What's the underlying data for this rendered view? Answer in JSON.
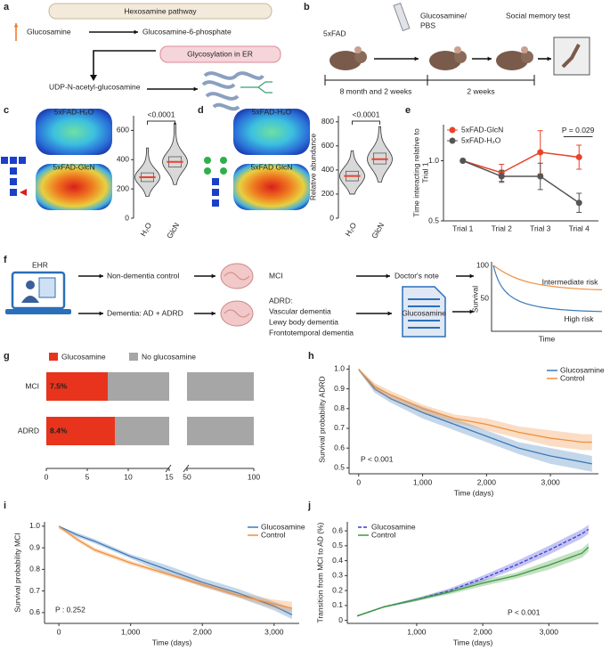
{
  "panel_letters": [
    "a",
    "b",
    "c",
    "d",
    "e",
    "f",
    "g",
    "h",
    "i",
    "j"
  ],
  "diagram_a": {
    "box_title": "Hexosamine pathway",
    "source": "Glucosamine",
    "product": "Glucosamine-6-phosphate",
    "process": "Glycosylation in ER",
    "intermediate": "UDP-N-acetyl-glucosamine"
  },
  "diagram_b": {
    "model": "5xFAD",
    "treatment": [
      "Glucosamine/",
      "PBS"
    ],
    "test": "Social memory test",
    "periods": [
      "8 month and 2 weeks",
      "2 weeks"
    ]
  },
  "diagram_f": {
    "source": "EHR",
    "groups": [
      "Non-dementia control",
      "Dementia: AD + ADRD"
    ],
    "mci": "MCI",
    "adrd": [
      "ADRD:",
      "Vascular dementia",
      "Lewy body dementia",
      "Frontotemporal dementia"
    ],
    "note": "Doctor's note",
    "note_term": "Glucosamine",
    "mini_chart": {
      "y_label": "Survival",
      "x_label": "Time",
      "yticks": [
        100,
        50
      ],
      "curves": [
        "Intermediate risk",
        "High risk"
      ]
    }
  },
  "chart_data": [
    {
      "type": "violin",
      "image_labels": [
        "5xFAD-H₂O",
        "5xFAD-GlcN"
      ],
      "categories": [
        "H₂O",
        "GlcN"
      ],
      "min": [
        150,
        230
      ],
      "q1": [
        250,
        350
      ],
      "median": [
        280,
        385
      ],
      "q3": [
        310,
        420
      ],
      "max": [
        480,
        650
      ],
      "color": "#d9d9d9",
      "median_color": "#e8442a",
      "ylim": [
        0,
        700
      ],
      "yticks": [
        0,
        200,
        400,
        600
      ],
      "annotation": "<0.0001"
    },
    {
      "type": "violin",
      "image_labels": [
        "5xFAD-H₂O",
        "5xFAD GlcN"
      ],
      "categories": [
        "H₂O",
        "GlcN"
      ],
      "min": [
        200,
        300
      ],
      "q1": [
        310,
        450
      ],
      "median": [
        350,
        490
      ],
      "q3": [
        390,
        540
      ],
      "max": [
        560,
        760
      ],
      "color": "#d9d9d9",
      "median_color": "#e8442a",
      "ylim": [
        0,
        850
      ],
      "yticks": [
        0,
        200,
        400,
        600,
        800
      ],
      "y_label": "Relative abundance",
      "annotation": "<0.0001"
    },
    {
      "type": "line",
      "categories": [
        "Trial 1",
        "Trial 2",
        "Trial 3",
        "Trial 4"
      ],
      "series": [
        {
          "name": "5xFAD-GlcN",
          "color": "#e8442a",
          "values": [
            1,
            0.9,
            1.07,
            1.03
          ],
          "errors": [
            0,
            0.07,
            0.18,
            0.1
          ]
        },
        {
          "name": "5xFAD-H₂O",
          "color": "#555555",
          "values": [
            1,
            0.87,
            0.87,
            0.65
          ],
          "errors": [
            0,
            0.05,
            0.11,
            0.08
          ]
        }
      ],
      "ylim": [
        0.5,
        1.3
      ],
      "yticks": [
        0.5,
        {
          "value": 1,
          "label": "1.0"
        }
      ],
      "y_label": [
        "Time interacting relative to",
        "Trial 1"
      ],
      "annotation": "P = 0.029",
      "legend": "upper left"
    },
    {
      "type": "bar",
      "orientation": "horizontal",
      "stacked": true,
      "categories": [
        "MCI",
        "ADRD"
      ],
      "series": [
        {
          "name": "Glucosamine",
          "color": "#e8341c",
          "values": [
            7.5,
            8.4
          ],
          "value_labels": [
            "7.5%",
            "8.4%"
          ]
        },
        {
          "name": "No glucosamine",
          "color": "#a6a6a6",
          "values": [
            92.5,
            91.6
          ]
        }
      ],
      "xlim": [
        0,
        100
      ],
      "xbreak": [
        15,
        50
      ],
      "xticks": [
        0,
        5,
        10,
        15,
        50,
        100
      ],
      "legend": "top"
    },
    {
      "type": "survival",
      "x": [
        0,
        250,
        500,
        1000,
        1500,
        2000,
        2500,
        3000,
        3500,
        3650
      ],
      "series": [
        {
          "name": "Glucosamine",
          "color": "#3d7ab8",
          "values": [
            1,
            0.9,
            0.85,
            0.78,
            0.72,
            0.66,
            0.6,
            0.56,
            0.53,
            0.52
          ],
          "lower": [
            0.99,
            0.88,
            0.83,
            0.75,
            0.69,
            0.63,
            0.57,
            0.52,
            0.49,
            0.48
          ],
          "upper": [
            1,
            0.92,
            0.87,
            0.81,
            0.75,
            0.69,
            0.63,
            0.6,
            0.57,
            0.56
          ]
        },
        {
          "name": "Control",
          "color": "#f0903c",
          "values": [
            1,
            0.91,
            0.87,
            0.8,
            0.75,
            0.72,
            0.68,
            0.65,
            0.63,
            0.63
          ],
          "lower": [
            0.99,
            0.89,
            0.85,
            0.78,
            0.73,
            0.69,
            0.65,
            0.61,
            0.59,
            0.59
          ],
          "upper": [
            1,
            0.93,
            0.89,
            0.82,
            0.77,
            0.75,
            0.71,
            0.69,
            0.67,
            0.67
          ]
        }
      ],
      "xlim": [
        -150,
        3750
      ],
      "xticks": [
        0,
        {
          "value": 1000,
          "label": "1,000"
        },
        {
          "value": 2000,
          "label": "2,000"
        },
        {
          "value": 3000,
          "label": "3,000"
        }
      ],
      "ylim": [
        0.47,
        1.02
      ],
      "yticks": [
        0.5,
        0.6,
        0.7,
        0.8,
        0.9,
        {
          "value": 1,
          "label": "1.0"
        }
      ],
      "x_label": "Time (days)",
      "y_label": "Survival probability ADRD",
      "annotation": "P < 0.001",
      "legend": "upper right"
    },
    {
      "type": "survival",
      "x": [
        0,
        250,
        500,
        1000,
        1500,
        2000,
        2500,
        3000,
        3250
      ],
      "series": [
        {
          "name": "Glucosamine",
          "color": "#3d7ab8",
          "values": [
            1,
            0.96,
            0.93,
            0.86,
            0.8,
            0.74,
            0.69,
            0.63,
            0.59
          ],
          "lower": [
            0.99,
            0.95,
            0.92,
            0.85,
            0.78,
            0.72,
            0.67,
            0.61,
            0.57
          ],
          "upper": [
            1,
            0.97,
            0.94,
            0.87,
            0.82,
            0.76,
            0.71,
            0.65,
            0.62
          ]
        },
        {
          "name": "Control",
          "color": "#f0903c",
          "values": [
            1,
            0.94,
            0.89,
            0.83,
            0.78,
            0.73,
            0.68,
            0.64,
            0.62
          ],
          "lower": [
            0.99,
            0.93,
            0.88,
            0.82,
            0.77,
            0.72,
            0.67,
            0.62,
            0.6
          ],
          "upper": [
            1,
            0.95,
            0.9,
            0.84,
            0.79,
            0.74,
            0.69,
            0.66,
            0.65
          ]
        }
      ],
      "xlim": [
        -200,
        3350
      ],
      "xticks": [
        0,
        {
          "value": 1000,
          "label": "1,000"
        },
        {
          "value": 2000,
          "label": "2,000"
        },
        {
          "value": 3000,
          "label": "3,000"
        }
      ],
      "ylim": [
        0.55,
        1.02
      ],
      "yticks": [
        0.6,
        0.7,
        0.8,
        0.9,
        {
          "value": 1,
          "label": "1.0"
        }
      ],
      "x_label": "Time (days)",
      "y_label": "Survival probability MCI",
      "annotation": "P : 0.252",
      "legend": "upper right"
    },
    {
      "type": "survival",
      "x": [
        100,
        500,
        1000,
        1500,
        2000,
        2500,
        3000,
        3500,
        3600
      ],
      "series": [
        {
          "name": "Glucosamine",
          "color": "#3b3bd6",
          "dashed": true,
          "values": [
            0.03,
            0.09,
            0.14,
            0.2,
            0.28,
            0.37,
            0.47,
            0.58,
            0.61
          ],
          "lower": [
            0.025,
            0.085,
            0.13,
            0.185,
            0.26,
            0.345,
            0.44,
            0.55,
            0.58
          ],
          "upper": [
            0.035,
            0.095,
            0.15,
            0.215,
            0.3,
            0.395,
            0.5,
            0.61,
            0.64
          ]
        },
        {
          "name": "Control",
          "color": "#3a9a3a",
          "values": [
            0.03,
            0.09,
            0.14,
            0.19,
            0.25,
            0.3,
            0.37,
            0.45,
            0.49
          ],
          "lower": [
            0.025,
            0.085,
            0.13,
            0.175,
            0.23,
            0.28,
            0.34,
            0.42,
            0.46
          ],
          "upper": [
            0.035,
            0.095,
            0.15,
            0.205,
            0.27,
            0.32,
            0.4,
            0.48,
            0.52
          ]
        }
      ],
      "xlim": [
        -50,
        3750
      ],
      "xticks": [
        {
          "value": 1000,
          "label": "1,000"
        },
        {
          "value": 2000,
          "label": "2,000"
        },
        {
          "value": 3000,
          "label": "3,000"
        }
      ],
      "ylim": [
        -0.02,
        0.66
      ],
      "yticks": [
        0,
        0.1,
        0.2,
        0.3,
        0.4,
        0.5,
        0.6
      ],
      "x_label": "Time (days)",
      "y_label": "Transition from MCI to AD (%)",
      "annotation": "P < 0.001",
      "legend": "upper left"
    }
  ]
}
